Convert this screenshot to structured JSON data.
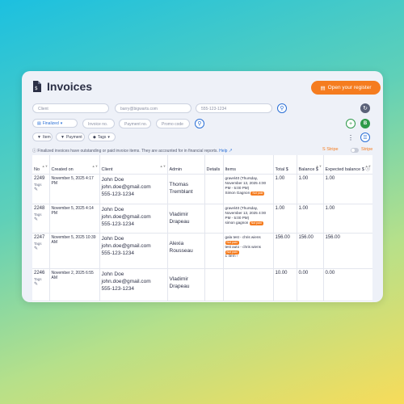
{
  "header": {
    "title": "Invoices",
    "register_button": "Open your register"
  },
  "filters": {
    "client_placeholder": "Client",
    "email_placeholder": "barry@bigwarts.com",
    "phone_placeholder": "555-123-1234",
    "status_label": "Finalized",
    "invoice_no_placeholder": "Invoice no.",
    "payment_no_placeholder": "Payment no.",
    "promo_placeholder": "Promo code",
    "item_label": "Item",
    "payment_label": "Payment",
    "tags_label": "Tags"
  },
  "info": {
    "text": "Finalized invoices have outstanding or paid invoice items. They are accounted for in financial reports.",
    "help": "Help",
    "stripe_icon_label": "Stripe",
    "stripe_toggle_label": "Stripe"
  },
  "table": {
    "columns": [
      "No",
      "Created on",
      "Client",
      "Admin",
      "Details",
      "Items",
      "Total $",
      "Balance $",
      "Expected balance $"
    ],
    "rows": [
      {
        "no": "2249",
        "tags": "Tags",
        "created": "November 5, 2025 4:17 PM",
        "client_name": "John Doe",
        "client_email": "john.doe@gmail.com",
        "client_phone": "555-123-1234",
        "admin": "Thomas Tremblant",
        "item1": "gravel40 (Thursday, November 13, 2025 4:00 PM - 5:00 PM)",
        "item2": "Simon Gagnon",
        "badge1": "Not paid",
        "badge2": "Not paid",
        "total": "1.00",
        "balance": "1.00",
        "expected": "1.00"
      },
      {
        "no": "2248",
        "tags": "Tags",
        "created": "November 5, 2025 4:14 PM",
        "client_name": "John Doe",
        "client_email": "john.doe@gmail.com",
        "client_phone": "555-123-1234",
        "admin": "Vladimir Drapeau",
        "item1": "gravel40 (Thursday, November 13, 2025 4:00 PM - 5:00 PM)",
        "item2": "simon gagnon",
        "badge1": "Not paid",
        "badge2": "Not paid",
        "total": "1.00",
        "balance": "1.00",
        "expected": "1.00"
      },
      {
        "no": "2247",
        "tags": "Tags",
        "created": "November 5, 2025 10:39 AM",
        "client_name": "John Doe",
        "client_email": "john.doe@gmail.com",
        "client_phone": "555-123-1234",
        "admin": "Alexia Rousseau",
        "item1": "gala test - chris wiens",
        "item2": "test auto - chris wiens",
        "badge1": "Not paid",
        "badge2": "Not paid",
        "more": "1 item",
        "total": "156.00",
        "balance": "156.00",
        "expected": "156.00"
      },
      {
        "no": "2246",
        "tags": "Tags",
        "created": "November 2, 2025 6:55 AM",
        "client_name": "John Doe",
        "client_email": "john.doe@gmail.com",
        "client_phone": "555-123-1234",
        "admin": "Vladimir Drapeau",
        "total": "10.00",
        "balance": "0.00",
        "expected": "0.00"
      }
    ]
  },
  "colors": {
    "accent": "#f57c1f",
    "link": "#2a6fd6",
    "card": "#eef1f8"
  }
}
